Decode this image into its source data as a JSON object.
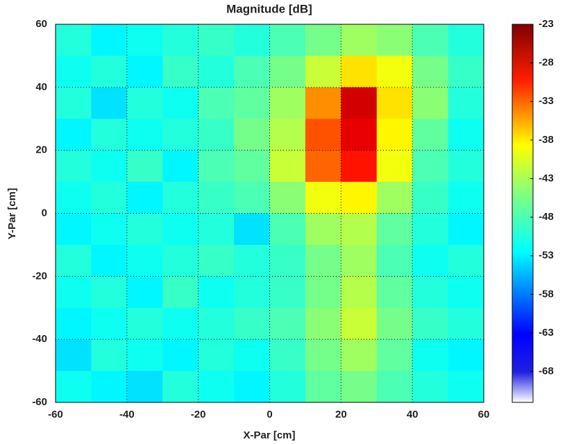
{
  "chart_data": {
    "type": "heatmap",
    "title": "Magnitude [dB]",
    "xlabel": "X-Par [cm]",
    "ylabel": "Y-Par [cm]",
    "colormap": "jet",
    "grid": true,
    "xlim": [
      -60,
      60
    ],
    "ylim": [
      -60,
      60
    ],
    "xticks": [
      -60,
      -40,
      -20,
      0,
      20,
      40,
      60
    ],
    "yticks": [
      -60,
      -40,
      -20,
      0,
      20,
      40,
      60
    ],
    "clim": [
      -72,
      -23
    ],
    "cticks": [
      -23,
      -28,
      -33,
      -38,
      -43,
      -48,
      -53,
      -58,
      -63,
      -68
    ],
    "x": [
      -55,
      -45,
      -35,
      -25,
      -15,
      -5,
      5,
      15,
      25,
      35,
      45,
      55
    ],
    "y": [
      55,
      45,
      35,
      25,
      15,
      5,
      -5,
      -15,
      -25,
      -35,
      -45,
      -55
    ],
    "z": [
      [
        -52,
        -54,
        -53,
        -52,
        -51,
        -52,
        -50,
        -48,
        -46,
        -47,
        -50,
        -52
      ],
      [
        -53,
        -52,
        -54,
        -51,
        -52,
        -50,
        -48,
        -44,
        -40,
        -42,
        -48,
        -51
      ],
      [
        -52,
        -55,
        -52,
        -53,
        -50,
        -49,
        -46,
        -36,
        -27,
        -40,
        -47,
        -52
      ],
      [
        -54,
        -52,
        -53,
        -52,
        -51,
        -48,
        -45,
        -33,
        -28,
        -41,
        -49,
        -53
      ],
      [
        -52,
        -53,
        -51,
        -54,
        -50,
        -49,
        -44,
        -34,
        -30,
        -42,
        -50,
        -52
      ],
      [
        -53,
        -52,
        -54,
        -52,
        -51,
        -50,
        -47,
        -42,
        -41,
        -46,
        -51,
        -53
      ],
      [
        -54,
        -53,
        -52,
        -53,
        -52,
        -55,
        -50,
        -46,
        -45,
        -49,
        -52,
        -54
      ],
      [
        -52,
        -54,
        -53,
        -52,
        -51,
        -52,
        -51,
        -48,
        -46,
        -50,
        -53,
        -52
      ],
      [
        -53,
        -52,
        -54,
        -51,
        -53,
        -52,
        -51,
        -48,
        -45,
        -49,
        -52,
        -53
      ],
      [
        -54,
        -53,
        -52,
        -53,
        -52,
        -51,
        -50,
        -47,
        -44,
        -48,
        -51,
        -52
      ],
      [
        -55,
        -52,
        -53,
        -54,
        -52,
        -53,
        -51,
        -48,
        -46,
        -49,
        -53,
        -54
      ],
      [
        -53,
        -54,
        -55,
        -52,
        -53,
        -54,
        -52,
        -49,
        -48,
        -50,
        -52,
        -53
      ]
    ]
  }
}
